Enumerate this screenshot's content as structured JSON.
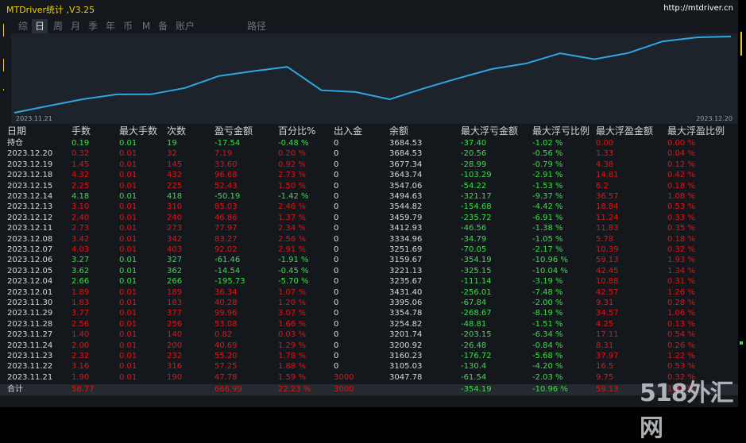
{
  "app": {
    "title": "MTDriver统计 ,V3.25",
    "url": "http://mtdriver.cn"
  },
  "tabs": [
    {
      "label": "综",
      "active": false
    },
    {
      "label": "日",
      "active": true
    },
    {
      "label": "周",
      "active": false
    },
    {
      "label": "月",
      "active": false
    },
    {
      "label": "季",
      "active": false
    },
    {
      "label": "年",
      "active": false
    },
    {
      "label": "币",
      "active": false
    },
    {
      "label": "M",
      "active": false
    },
    {
      "label": "备",
      "active": false
    },
    {
      "label": "账户",
      "active": false
    },
    {
      "label": "路径",
      "active": false
    }
  ],
  "colors": {
    "title": "#f0d000",
    "positive": "#3ddc4c",
    "negative": "#e01515",
    "neutral": "#d6d9dc",
    "line": "#2ea7e0",
    "chart_bg": "#1d232b"
  },
  "chart_data": {
    "type": "line",
    "x_start_label": "2023.11.21",
    "x_end_label": "2023.12.20",
    "x": [
      "2023.11.21",
      "2023.11.22",
      "2023.11.23",
      "2023.11.24",
      "2023.11.27",
      "2023.11.28",
      "2023.11.29",
      "2023.11.30",
      "2023.12.01",
      "2023.12.04",
      "2023.12.05",
      "2023.12.06",
      "2023.12.07",
      "2023.12.08",
      "2023.12.11",
      "2023.12.12",
      "2023.12.13",
      "2023.12.14",
      "2023.12.15",
      "2023.12.18",
      "2023.12.19",
      "2023.12.20"
    ],
    "values": [
      3047.78,
      3105.03,
      3160.23,
      3200.92,
      3201.74,
      3254.82,
      3354.78,
      3395.06,
      3431.4,
      3235.67,
      3221.13,
      3159.67,
      3251.69,
      3334.96,
      3412.93,
      3459.79,
      3544.82,
      3494.63,
      3547.06,
      3643.74,
      3677.34,
      3684.53
    ],
    "grid": false
  },
  "table": {
    "headers": [
      "日期",
      "手数",
      "最大手数",
      "次数",
      "盈亏金额",
      "百分比%",
      "出入金",
      "余额",
      "最大浮亏金额",
      "最大浮亏比例",
      "最大浮盈金额",
      "最大浮盈比例"
    ],
    "rows": [
      {
        "t": "pos",
        "c": [
          "持仓",
          "0.19",
          "0.01",
          "19",
          "-17.54",
          "-0.48 %",
          "0",
          "3684.53",
          "-37.40",
          "-1.02 %",
          "0.00",
          "0.00 %"
        ]
      },
      {
        "t": "neg",
        "c": [
          "2023.12.20",
          "0.32",
          "0.01",
          "32",
          "7.19",
          "0.20 %",
          "0",
          "3684.53",
          "-20.56",
          "-0.56 %",
          "1.33",
          "0.04 %"
        ]
      },
      {
        "t": "neg",
        "c": [
          "2023.12.19",
          "1.45",
          "0.01",
          "145",
          "33.60",
          "0.92 %",
          "0",
          "3677.34",
          "-28.99",
          "-0.79 %",
          "4.38",
          "0.12 %"
        ]
      },
      {
        "t": "neg",
        "c": [
          "2023.12.18",
          "4.32",
          "0.01",
          "432",
          "96.68",
          "2.73 %",
          "0",
          "3643.74",
          "-103.29",
          "-2.91 %",
          "14.81",
          "0.42 %"
        ]
      },
      {
        "t": "neg",
        "c": [
          "2023.12.15",
          "2.25",
          "0.01",
          "225",
          "52.43",
          "1.50 %",
          "0",
          "3547.06",
          "-54.22",
          "-1.53 %",
          "6.2",
          "0.18 %"
        ]
      },
      {
        "t": "pos",
        "c": [
          "2023.12.14",
          "4.18",
          "0.01",
          "418",
          "-50.19",
          "-1.42 %",
          "0",
          "3494.63",
          "-321.17",
          "-9.37 %",
          "36.57",
          "1.08 %"
        ]
      },
      {
        "t": "neg",
        "c": [
          "2023.12.13",
          "3.10",
          "0.01",
          "310",
          "85.03",
          "2.46 %",
          "0",
          "3544.82",
          "-154.68",
          "-4.42 %",
          "18.84",
          "0.53 %"
        ]
      },
      {
        "t": "neg",
        "c": [
          "2023.12.12",
          "2.40",
          "0.01",
          "240",
          "46.86",
          "1.37 %",
          "0",
          "3459.79",
          "-235.72",
          "-6.91 %",
          "11.24",
          "0.33 %"
        ]
      },
      {
        "t": "neg",
        "c": [
          "2023.12.11",
          "2.73",
          "0.01",
          "273",
          "77.97",
          "2.34 %",
          "0",
          "3412.93",
          "-46.56",
          "-1.38 %",
          "11.83",
          "0.35 %"
        ]
      },
      {
        "t": "neg",
        "c": [
          "2023.12.08",
          "3.42",
          "0.01",
          "342",
          "83.27",
          "2.56 %",
          "0",
          "3334.96",
          "-34.79",
          "-1.05 %",
          "5.78",
          "0.18 %"
        ]
      },
      {
        "t": "neg",
        "c": [
          "2023.12.07",
          "4.03",
          "0.01",
          "403",
          "92.02",
          "2.91 %",
          "0",
          "3251.69",
          "-70.05",
          "-2.17 %",
          "10.39",
          "0.32 %"
        ]
      },
      {
        "t": "pos",
        "c": [
          "2023.12.06",
          "3.27",
          "0.01",
          "327",
          "-61.46",
          "-1.91 %",
          "0",
          "3159.67",
          "-354.19",
          "-10.96 %",
          "59.13",
          "1.93 %"
        ]
      },
      {
        "t": "pos",
        "c": [
          "2023.12.05",
          "3.62",
          "0.01",
          "362",
          "-14.54",
          "-0.45 %",
          "0",
          "3221.13",
          "-325.15",
          "-10.04 %",
          "42.45",
          "1.34 %"
        ]
      },
      {
        "t": "pos",
        "c": [
          "2023.12.04",
          "2.66",
          "0.01",
          "266",
          "-195.73",
          "-5.70 %",
          "0",
          "3235.67",
          "-111.14",
          "-3.19 %",
          "10.88",
          "0.31 %"
        ]
      },
      {
        "t": "neg",
        "c": [
          "2023.12.01",
          "1.89",
          "0.01",
          "189",
          "36.34",
          "1.07 %",
          "0",
          "3431.40",
          "-256.01",
          "-7.48 %",
          "42.57",
          "1.26 %"
        ]
      },
      {
        "t": "neg",
        "c": [
          "2023.11.30",
          "1.83",
          "0.01",
          "183",
          "40.28",
          "1.20 %",
          "0",
          "3395.06",
          "-67.84",
          "-2.00 %",
          "9.31",
          "0.28 %"
        ]
      },
      {
        "t": "neg",
        "c": [
          "2023.11.29",
          "3.77",
          "0.01",
          "377",
          "99.96",
          "3.07 %",
          "0",
          "3354.78",
          "-268.67",
          "-8.19 %",
          "34.57",
          "1.06 %"
        ]
      },
      {
        "t": "neg",
        "c": [
          "2023.11.28",
          "2.56",
          "0.01",
          "256",
          "53.08",
          "1.66 %",
          "0",
          "3254.82",
          "-48.81",
          "-1.51 %",
          "4.25",
          "0.13 %"
        ]
      },
      {
        "t": "neg",
        "c": [
          "2023.11.27",
          "1.40",
          "0.01",
          "140",
          "0.82",
          "0.03 %",
          "0",
          "3201.74",
          "-203.15",
          "-6.34 %",
          "17.11",
          "0.54 %"
        ]
      },
      {
        "t": "neg",
        "c": [
          "2023.11.24",
          "2.00",
          "0.01",
          "200",
          "40.69",
          "1.29 %",
          "0",
          "3200.92",
          "-26.48",
          "-0.84 %",
          "8.31",
          "0.26 %"
        ]
      },
      {
        "t": "neg",
        "c": [
          "2023.11.23",
          "2.32",
          "0.01",
          "232",
          "55.20",
          "1.78 %",
          "0",
          "3160.23",
          "-176.72",
          "-5.68 %",
          "37.97",
          "1.22 %"
        ]
      },
      {
        "t": "neg",
        "c": [
          "2023.11.22",
          "3.16",
          "0.01",
          "316",
          "57.25",
          "1.88 %",
          "0",
          "3105.03",
          "-130.4",
          "-4.20 %",
          "16.5",
          "0.53 %"
        ]
      },
      {
        "t": "neg",
        "c": [
          "2023.11.21",
          "1.90",
          "0.01",
          "190",
          "47.78",
          "1.59 %",
          "3000",
          "3047.78",
          "-61.54",
          "-2.03 %",
          "9.75",
          "0.32 %"
        ]
      }
    ],
    "total": {
      "c": [
        "合计",
        "58.77",
        "",
        "",
        "666.99",
        "22.23 %",
        "3000",
        "",
        "-354.19",
        "-10.96 %",
        "59.13",
        "1.93 %"
      ]
    }
  },
  "watermark": "518外汇网"
}
